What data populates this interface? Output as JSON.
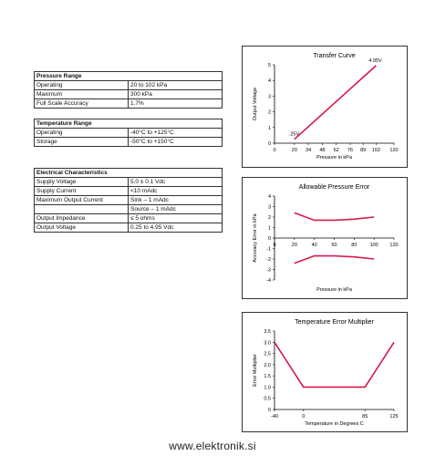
{
  "pressure_range": {
    "title": "Pressure Range",
    "rows": [
      {
        "label": "Operating",
        "value": "20 to 102 kPa"
      },
      {
        "label": "Maximum",
        "value": "300 kPa"
      },
      {
        "label": "Full Scale Accuracy",
        "value": "1.7%"
      }
    ]
  },
  "temperature_range": {
    "title": "Temperature Range",
    "rows": [
      {
        "label": "Operating",
        "value": "-40°C to +125°C"
      },
      {
        "label": "Storage",
        "value": "-50°C to +150°C"
      }
    ]
  },
  "electrical": {
    "title": "Electrical Characteristics",
    "rows": [
      {
        "label": "Supply Voltage",
        "value": "5.0 ± 0.1 Vdc"
      },
      {
        "label": "Supply Current",
        "value": "<10 mAdc"
      },
      {
        "label": "Maximum Output Current",
        "value": "Sink – 1 mAdc"
      },
      {
        "label": "",
        "value": "Source – 1 mAdc"
      },
      {
        "label": "Output Impedance",
        "value": "≤ 5 ohms"
      },
      {
        "label": "Output Voltage",
        "value": "0.25 to 4.95 Vdc"
      }
    ]
  },
  "footer": "www.elektronik.si",
  "chart_data": [
    {
      "type": "line",
      "title": "Transfer Curve",
      "xlabel": "Pressure in kPa",
      "ylabel": "Output Voltage",
      "xlim": [
        0,
        120
      ],
      "ylim": [
        0,
        5
      ],
      "xticks": [
        "0",
        "20",
        "34",
        "48",
        "62",
        "76",
        "89",
        "102",
        "120"
      ],
      "yticks": [
        "0",
        "1",
        "2",
        "3",
        "4",
        "5"
      ],
      "series": [
        {
          "x": [
            20,
            102
          ],
          "y": [
            0.25,
            4.95
          ],
          "color": "#d6184a"
        }
      ],
      "annotations": [
        ".25V",
        "4.95V"
      ]
    },
    {
      "type": "line",
      "title": "Allowable Pressure Error",
      "xlabel": "Pressure in kPa",
      "ylabel": "Accuracy Error in kPa",
      "xlim": [
        0,
        120
      ],
      "ylim": [
        -4,
        4
      ],
      "xticks": [
        "0",
        "20",
        "40",
        "60",
        "80",
        "100",
        "120"
      ],
      "yticks": [
        "4",
        "3",
        "2",
        "1",
        "0",
        "-1",
        "-2",
        "-3",
        "-4"
      ],
      "series": [
        {
          "x": [
            20,
            40,
            60,
            80,
            100
          ],
          "y": [
            2.4,
            1.7,
            1.7,
            1.8,
            2.0
          ],
          "color": "#d6184a"
        },
        {
          "x": [
            20,
            40,
            60,
            80,
            100
          ],
          "y": [
            -2.4,
            -1.7,
            -1.7,
            -1.8,
            -2.0
          ],
          "color": "#d6184a"
        }
      ]
    },
    {
      "type": "line",
      "title": "Temperature Error Multiplier",
      "xlabel": "Temperature in Degrees C",
      "ylabel": "Error Multiplier",
      "xlim": [
        -40,
        125
      ],
      "ylim": [
        0,
        3.5
      ],
      "xticks": [
        "-40",
        "0",
        "85",
        "125"
      ],
      "yticks": [
        "0",
        "0.5",
        "1.0",
        "1.5",
        "2.0",
        "2.5",
        "3.0",
        "3.5"
      ],
      "series": [
        {
          "x": [
            -40,
            0,
            85,
            125
          ],
          "y": [
            3.0,
            1.0,
            1.0,
            3.0
          ],
          "color": "#d6184a"
        }
      ]
    }
  ]
}
